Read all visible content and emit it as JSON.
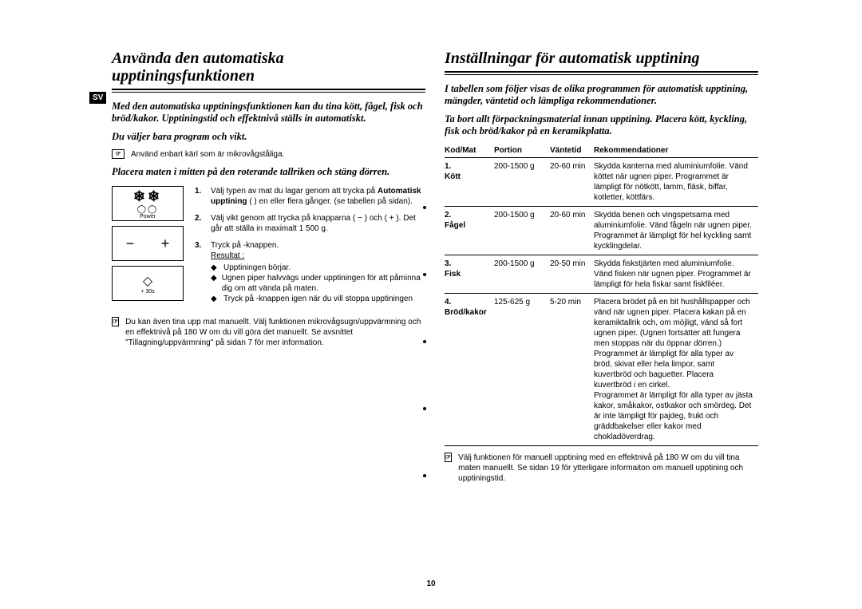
{
  "lang": "SV",
  "pagenum": "10",
  "left": {
    "title": "Använda den automatiska upptiningsfunktionen",
    "intro": "Med den automatiska upptiningsfunktionen kan du tina kött, fågel, fisk och bröd/kakor. Upptiningstid och effektnivå ställs in automatiskt.",
    "intro2": "Du väljer bara program och vikt.",
    "note": "Använd enbart kärl som är mikrovågståliga.",
    "subhead": "Placera maten i mitten på den roterande tallriken och stäng dörren.",
    "panel1_top": "❄❄",
    "panel1_mid": "◯◯",
    "panel1_small": "Power",
    "panel2": "−    +",
    "panel3_icon": "◇",
    "panel3_small": "+ 30s",
    "steps": [
      {
        "n": "1.",
        "text": "Välj typen av mat du lagar genom att trycka på",
        "bold": "Automatisk upptining",
        "tail": " ( ) en eller flera gånger. (se tabellen på sidan)."
      },
      {
        "n": "2.",
        "text": "Välj vikt genom att trycka på knapparna ( − ) och ( + ). Det går att ställa in maximalt 1 500 g."
      },
      {
        "n": "3.",
        "text": "Tryck på   -knappen.",
        "result_label": "Resultat :",
        "results": [
          "Upptiningen börjar.",
          "Ugnen piper halvvägs under upptiningen för att påminna dig om att vända på maten.",
          "Tryck på   -knappen igen när du vill stoppa upptiningen"
        ]
      }
    ],
    "note2": "Du kan även tina upp mat manuellt. Välj funktionen mikrovågsugn/uppvärmning och en effektnivå på 180 W om du vill göra det manuellt. Se avsnittet \"Tillagning/uppvärmning\" på sidan 7 för mer information."
  },
  "right": {
    "title": "Inställningar för automatisk upptining",
    "intro": "I tabellen som följer visas de olika programmen för automatisk upptining, mängder, väntetid och lämpliga rekommendationer.",
    "intro2": "Ta bort allt förpackningsmaterial innan upptining. Placera kött, kyckling, fisk och bröd/kakor på en keramikplatta.",
    "headers": [
      "Kod/Mat",
      "Portion",
      "Väntetid",
      "Rekommendationer"
    ],
    "rows": [
      {
        "num": "1.",
        "name": "Kött",
        "portion": "200-1500 g",
        "wait": "20-60 min",
        "rec": "Skydda kanterna med aluminiumfolie. Vänd köttet när ugnen piper. Programmet är lämpligt för nötkött, lamm, fläsk, biffar, kotletter, köttfärs."
      },
      {
        "num": "2.",
        "name": "Fågel",
        "portion": "200-1500 g",
        "wait": "20-60 min",
        "rec": "Skydda benen och vingspetsarna med aluminiumfolie. Vänd fågeln när ugnen piper. Programmet är lämpligt för hel kyckling samt kycklingdelar."
      },
      {
        "num": "3.",
        "name": "Fisk",
        "portion": "200-1500 g",
        "wait": "20-50 min",
        "rec": "Skydda fiskstjärten med aluminiumfolie. Vänd fisken när ugnen piper. Programmet är lämpligt för hela fiskar samt fiskfiléer."
      },
      {
        "num": "4.",
        "name": "Bröd/kakor",
        "portion": "125-625 g",
        "wait": "5-20 min",
        "rec": "Placera brödet på en bit hushållspapper och vänd när ugnen piper. Placera kakan på en keramiktallrik och, om möjligt, vänd så fort ugnen piper. (Ugnen fortsätter att fungera men stoppas när du öppnar dörren.)\nProgrammet är lämpligt för alla typer av bröd, skivat eller hela limpor, samt kuvertbröd och baguetter. Placera kuvertbröd i en cirkel.\nProgrammet är lämpligt för alla typer av jästa kakor, småkakor, ostkakor och smördeg. Det är inte lämpligt för pajdeg, frukt och gräddbakelser eller kakor med chokladöverdrag."
      }
    ],
    "note": "Välj funktionen för manuell upptining med en effektnivå på 180 W om du vill tina maten manuellt. Se sidan 19 för ytterligare informaiton om manuell upptining och upptiningstid."
  }
}
